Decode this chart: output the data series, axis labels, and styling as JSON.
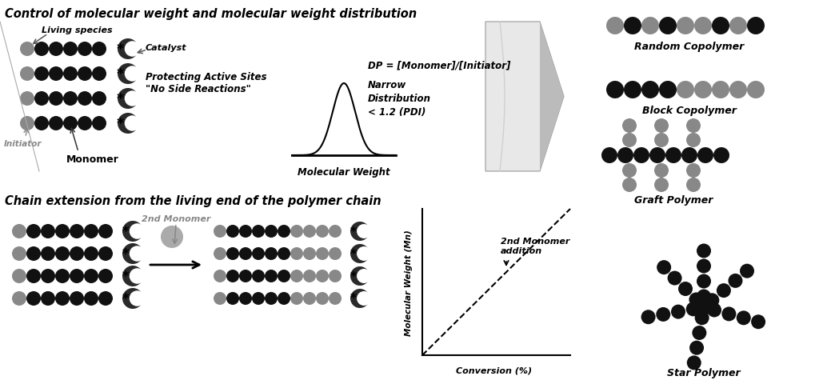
{
  "title_top": "Control of molecular weight and molecular weight distribution",
  "title_bottom": "Chain extension from the living end of the polymer chain",
  "bg_color": "#ffffff",
  "gray_c": "#888888",
  "light_gray": "#aaaaaa",
  "dark_c": "#111111",
  "mid_gray": "#555555",
  "labels": {
    "living_species": "Living species",
    "catalyst": "Catalyst",
    "protecting": "Protecting Active Sites\n\"No Side Reactions\"",
    "initiator": "Initiator",
    "monomer": "Monomer",
    "dp_eq": "DP = [Monomer]/[Initiator]",
    "narrow": "Narrow\nDistribution\n< 1.2 (PDI)",
    "mol_weight_axis": "Molecular Weight",
    "random": "Random Copolymer",
    "block": "Block Copolymer",
    "graft": "Graft Polymer",
    "star": "Star Polymer",
    "second_monomer": "2nd Monomer",
    "second_monomer_addition": "2nd Monomer\naddition",
    "conversion": "Conversion (%)",
    "mol_weight_mn": "Molecular Weight (Mn)"
  },
  "rc_balls": [
    "#888888",
    "#111111",
    "#888888",
    "#111111",
    "#888888",
    "#888888",
    "#111111",
    "#888888",
    "#111111"
  ],
  "bc_balls": [
    "#111111",
    "#111111",
    "#111111",
    "#111111",
    "#888888",
    "#888888",
    "#888888",
    "#888888",
    "#888888"
  ],
  "top_chain_gray": "#888888",
  "top_chain_black": "#111111",
  "crescent_color": "#2a2a2a"
}
